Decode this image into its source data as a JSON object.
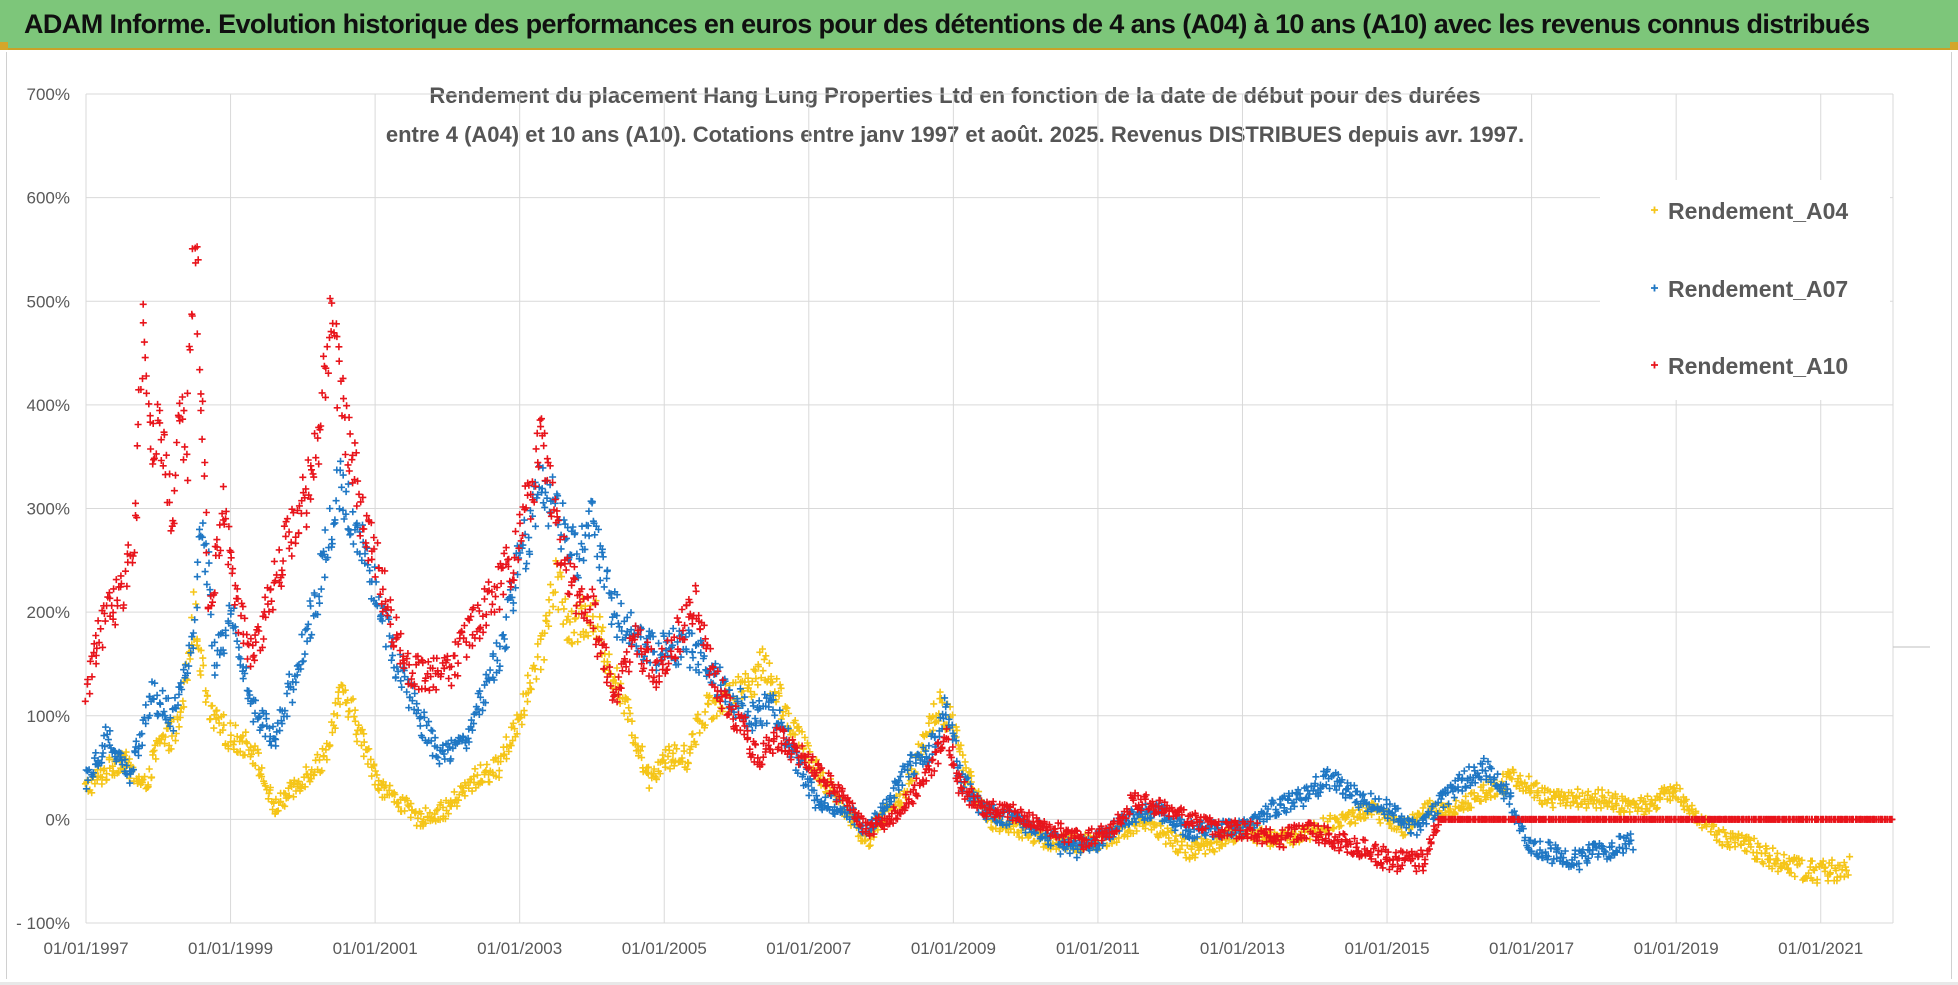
{
  "header": {
    "title": "ADAM Informe. Evolution historique des performances en euros pour des détentions de 4 ans (A04) à 10 ans (A10) avec les revenus connus distribués"
  },
  "colors": {
    "A04": "#f5c518",
    "A07": "#1f77c4",
    "A10": "#e8141b",
    "grid": "#d9d9d9",
    "header_bg": "#7dc67a"
  },
  "chart_data": {
    "type": "scatter",
    "title_lines": [
      "Rendement du placement Hang Lung Properties Ltd en fonction de la date de début pour des durées",
      "entre 4 (A04) et 10 ans (A10).  Cotations entre janv 1997 et août. 2025. Revenus DISTRIBUES depuis avr. 1997."
    ],
    "ylabel": "",
    "xlabel": "",
    "ylim": [
      -100,
      700
    ],
    "xlim": [
      "1997-01-01",
      "2022-01-01"
    ],
    "y_ticks": [
      -100,
      0,
      100,
      200,
      300,
      400,
      500,
      600,
      700
    ],
    "y_tick_labels": [
      "- 100%",
      "0%",
      "100%",
      "200%",
      "300%",
      "400%",
      "500%",
      "600%",
      "700%"
    ],
    "x_ticks": [
      1997,
      1999,
      2001,
      2003,
      2005,
      2007,
      2009,
      2011,
      2013,
      2015,
      2017,
      2019,
      2021
    ],
    "x_tick_labels": [
      "01/01/1997",
      "01/01/1999",
      "01/01/2001",
      "01/01/2003",
      "01/01/2005",
      "01/01/2007",
      "01/01/2009",
      "01/01/2011",
      "01/01/2013",
      "01/01/2015",
      "01/01/2017",
      "01/01/2019",
      "01/01/2021"
    ],
    "grid": true,
    "legend_position": "top-right",
    "marker": "+",
    "series": [
      {
        "name": "Rendement_A04",
        "key": "A04",
        "x_end": 2021.4,
        "points": [
          [
            1997.0,
            30
          ],
          [
            1997.5,
            60
          ],
          [
            1997.8,
            30
          ],
          [
            1998.0,
            70
          ],
          [
            1998.3,
            90
          ],
          [
            1998.5,
            200
          ],
          [
            1998.7,
            100
          ],
          [
            1999.0,
            80
          ],
          [
            1999.3,
            70
          ],
          [
            1999.6,
            10
          ],
          [
            2000.0,
            40
          ],
          [
            2000.3,
            60
          ],
          [
            2000.5,
            120
          ],
          [
            2000.7,
            100
          ],
          [
            2000.9,
            60
          ],
          [
            2001.1,
            30
          ],
          [
            2001.3,
            20
          ],
          [
            2001.6,
            0
          ],
          [
            2002.0,
            10
          ],
          [
            2002.4,
            40
          ],
          [
            2002.7,
            50
          ],
          [
            2003.0,
            100
          ],
          [
            2003.3,
            160
          ],
          [
            2003.5,
            240
          ],
          [
            2003.7,
            180
          ],
          [
            2004.0,
            200
          ],
          [
            2004.3,
            140
          ],
          [
            2004.6,
            80
          ],
          [
            2004.8,
            40
          ],
          [
            2005.0,
            60
          ],
          [
            2005.3,
            60
          ],
          [
            2005.6,
            110
          ],
          [
            2006.0,
            120
          ],
          [
            2006.4,
            150
          ],
          [
            2006.7,
            100
          ],
          [
            2007.0,
            60
          ],
          [
            2007.3,
            30
          ],
          [
            2007.6,
            0
          ],
          [
            2007.8,
            -20
          ],
          [
            2008.0,
            0
          ],
          [
            2008.3,
            20
          ],
          [
            2008.6,
            80
          ],
          [
            2008.8,
            110
          ],
          [
            2009.0,
            90
          ],
          [
            2009.2,
            40
          ],
          [
            2009.5,
            0
          ],
          [
            2009.9,
            -10
          ],
          [
            2010.3,
            -20
          ],
          [
            2010.7,
            -25
          ],
          [
            2011.0,
            -20
          ],
          [
            2011.4,
            -10
          ],
          [
            2011.7,
            0
          ],
          [
            2012.0,
            -20
          ],
          [
            2012.3,
            -30
          ],
          [
            2012.7,
            -20
          ],
          [
            2013.0,
            -10
          ],
          [
            2013.5,
            -20
          ],
          [
            2014.0,
            -10
          ],
          [
            2014.4,
            0
          ],
          [
            2014.8,
            10
          ],
          [
            2015.2,
            -10
          ],
          [
            2015.6,
            10
          ],
          [
            2016.0,
            10
          ],
          [
            2016.4,
            30
          ],
          [
            2016.8,
            40
          ],
          [
            2017.2,
            20
          ],
          [
            2017.6,
            20
          ],
          [
            2018.0,
            20
          ],
          [
            2018.4,
            10
          ],
          [
            2018.8,
            20
          ],
          [
            2019.0,
            30
          ],
          [
            2019.3,
            0
          ],
          [
            2019.7,
            -20
          ],
          [
            2020.0,
            -25
          ],
          [
            2020.4,
            -40
          ],
          [
            2020.8,
            -50
          ],
          [
            2021.1,
            -50
          ],
          [
            2021.4,
            -45
          ]
        ]
      },
      {
        "name": "Rendement_A07",
        "key": "A07",
        "x_end": 2018.4,
        "points": [
          [
            1997.0,
            40
          ],
          [
            1997.3,
            80
          ],
          [
            1997.6,
            40
          ],
          [
            1997.9,
            120
          ],
          [
            1998.2,
            100
          ],
          [
            1998.5,
            180
          ],
          [
            1998.6,
            300
          ],
          [
            1998.8,
            150
          ],
          [
            1999.0,
            200
          ],
          [
            1999.3,
            110
          ],
          [
            1999.6,
            80
          ],
          [
            2000.0,
            160
          ],
          [
            2000.3,
            250
          ],
          [
            2000.5,
            320
          ],
          [
            2000.7,
            290
          ],
          [
            2000.9,
            250
          ],
          [
            2001.1,
            200
          ],
          [
            2001.3,
            150
          ],
          [
            2001.6,
            100
          ],
          [
            2001.9,
            60
          ],
          [
            2002.2,
            70
          ],
          [
            2002.5,
            120
          ],
          [
            2002.8,
            180
          ],
          [
            2003.0,
            250
          ],
          [
            2003.3,
            320
          ],
          [
            2003.5,
            300
          ],
          [
            2003.8,
            250
          ],
          [
            2004.0,
            290
          ],
          [
            2004.3,
            200
          ],
          [
            2004.6,
            180
          ],
          [
            2004.9,
            160
          ],
          [
            2005.2,
            170
          ],
          [
            2005.5,
            160
          ],
          [
            2005.9,
            120
          ],
          [
            2006.2,
            100
          ],
          [
            2006.5,
            110
          ],
          [
            2006.8,
            60
          ],
          [
            2007.1,
            20
          ],
          [
            2007.5,
            10
          ],
          [
            2007.8,
            -10
          ],
          [
            2008.1,
            20
          ],
          [
            2008.4,
            50
          ],
          [
            2008.7,
            70
          ],
          [
            2008.9,
            110
          ],
          [
            2009.1,
            40
          ],
          [
            2009.4,
            10
          ],
          [
            2009.8,
            0
          ],
          [
            2010.2,
            -10
          ],
          [
            2010.6,
            -30
          ],
          [
            2011.0,
            -20
          ],
          [
            2011.4,
            0
          ],
          [
            2011.8,
            10
          ],
          [
            2012.2,
            -10
          ],
          [
            2012.6,
            -10
          ],
          [
            2013.0,
            -10
          ],
          [
            2013.4,
            10
          ],
          [
            2013.8,
            20
          ],
          [
            2014.2,
            40
          ],
          [
            2014.6,
            20
          ],
          [
            2015.0,
            10
          ],
          [
            2015.4,
            -10
          ],
          [
            2015.8,
            20
          ],
          [
            2016.1,
            40
          ],
          [
            2016.4,
            50
          ],
          [
            2016.7,
            20
          ],
          [
            2016.9,
            -20
          ],
          [
            2017.2,
            -30
          ],
          [
            2017.6,
            -40
          ],
          [
            2018.0,
            -30
          ],
          [
            2018.4,
            -20
          ]
        ]
      },
      {
        "name": "Rendement_A10",
        "key": "A10",
        "x_end": 2022.0,
        "points": [
          [
            1997.0,
            120
          ],
          [
            1997.1,
            160
          ],
          [
            1997.3,
            200
          ],
          [
            1997.5,
            220
          ],
          [
            1997.7,
            300
          ],
          [
            1997.8,
            500
          ],
          [
            1997.9,
            350
          ],
          [
            1998.0,
            400
          ],
          [
            1998.2,
            280
          ],
          [
            1998.3,
            420
          ],
          [
            1998.4,
            340
          ],
          [
            1998.5,
            600
          ],
          [
            1998.55,
            500
          ],
          [
            1998.6,
            400
          ],
          [
            1998.7,
            200
          ],
          [
            1998.9,
            300
          ],
          [
            1999.1,
            200
          ],
          [
            1999.3,
            150
          ],
          [
            1999.5,
            200
          ],
          [
            1999.7,
            250
          ],
          [
            2000.0,
            300
          ],
          [
            2000.2,
            350
          ],
          [
            2000.4,
            500
          ],
          [
            2000.5,
            420
          ],
          [
            2000.6,
            380
          ],
          [
            2000.8,
            300
          ],
          [
            2001.0,
            250
          ],
          [
            2001.2,
            200
          ],
          [
            2001.4,
            150
          ],
          [
            2001.7,
            140
          ],
          [
            2002.0,
            140
          ],
          [
            2002.3,
            180
          ],
          [
            2002.6,
            210
          ],
          [
            2002.9,
            250
          ],
          [
            2003.1,
            300
          ],
          [
            2003.3,
            360
          ],
          [
            2003.5,
            280
          ],
          [
            2003.7,
            230
          ],
          [
            2004.0,
            200
          ],
          [
            2004.3,
            120
          ],
          [
            2004.6,
            170
          ],
          [
            2004.9,
            140
          ],
          [
            2005.2,
            180
          ],
          [
            2005.4,
            210
          ],
          [
            2005.7,
            130
          ],
          [
            2006.0,
            100
          ],
          [
            2006.3,
            60
          ],
          [
            2006.6,
            80
          ],
          [
            2006.9,
            60
          ],
          [
            2007.2,
            40
          ],
          [
            2007.5,
            20
          ],
          [
            2007.8,
            -10
          ],
          [
            2008.1,
            0
          ],
          [
            2008.4,
            20
          ],
          [
            2008.7,
            50
          ],
          [
            2008.9,
            80
          ],
          [
            2009.1,
            30
          ],
          [
            2009.4,
            10
          ],
          [
            2009.7,
            10
          ],
          [
            2010.0,
            0
          ],
          [
            2010.4,
            -10
          ],
          [
            2010.8,
            -20
          ],
          [
            2011.2,
            -10
          ],
          [
            2011.5,
            20
          ],
          [
            2011.9,
            10
          ],
          [
            2012.3,
            0
          ],
          [
            2012.7,
            -10
          ],
          [
            2013.1,
            -10
          ],
          [
            2013.5,
            -20
          ],
          [
            2013.9,
            -10
          ],
          [
            2014.3,
            -20
          ],
          [
            2014.7,
            -30
          ],
          [
            2015.1,
            -40
          ],
          [
            2015.5,
            -40
          ],
          [
            2015.7,
            0
          ],
          [
            2016.5,
            0
          ],
          [
            2017.5,
            0
          ],
          [
            2018.5,
            0
          ],
          [
            2019.5,
            0
          ],
          [
            2020.5,
            0
          ],
          [
            2021.5,
            0
          ],
          [
            2022.0,
            0
          ]
        ]
      }
    ]
  }
}
